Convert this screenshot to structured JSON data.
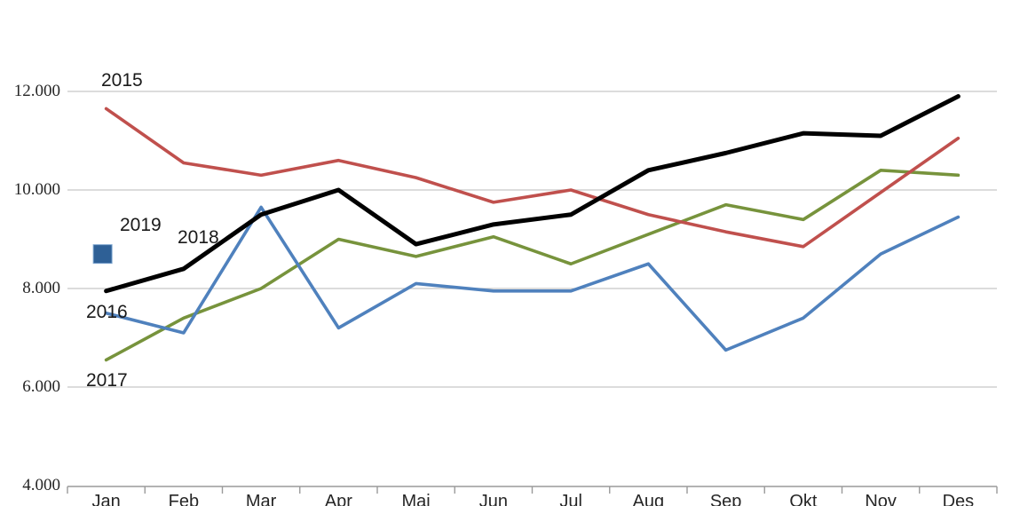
{
  "chart_data": {
    "type": "line",
    "title": "",
    "xlabel": "",
    "ylabel": "",
    "categories": [
      "Jan",
      "Feb",
      "Mar",
      "Apr",
      "Mai",
      "Jun",
      "Jul",
      "Aug",
      "Sep",
      "Okt",
      "Nov",
      "Des"
    ],
    "y_ticks": [
      "4.000",
      "6.000",
      "8.000",
      "10.000",
      "12.000"
    ],
    "ylim": [
      4000,
      12000
    ],
    "grid": true,
    "legend_position": "inline-labels",
    "colors": {
      "grid": "#c6c6c6",
      "axis": "#9a9a9a",
      "s2015": "#c0504d",
      "s2016": "#4f81bd",
      "s2017": "#77933c",
      "s2018": "#000000",
      "s2019_fill": "#2e6096",
      "s2019_border": "#7ea6d0"
    },
    "series": [
      {
        "name": "2015",
        "color": "#c0504d",
        "style": "line",
        "values": [
          11650,
          10550,
          10300,
          10600,
          10250,
          9750,
          10000,
          9500,
          9150,
          8850,
          9950,
          11050
        ]
      },
      {
        "name": "2016",
        "color": "#4f81bd",
        "style": "line",
        "values": [
          7500,
          7100,
          9650,
          7200,
          8100,
          7950,
          7950,
          8500,
          6750,
          7400,
          8700,
          9450
        ]
      },
      {
        "name": "2017",
        "color": "#77933c",
        "style": "line",
        "values": [
          6550,
          7400,
          8000,
          9000,
          8650,
          9050,
          8500,
          9100,
          9700,
          9400,
          10400,
          10300
        ]
      },
      {
        "name": "2018",
        "color": "#000000",
        "style": "line",
        "values": [
          7950,
          8400,
          9500,
          10000,
          8900,
          9300,
          9500,
          10400,
          10750,
          11150,
          11100,
          11900
        ]
      },
      {
        "name": "2019",
        "color": "#2e6096",
        "style": "square-marker",
        "values": [
          8700,
          null,
          null,
          null,
          null,
          null,
          null,
          null,
          null,
          null,
          null,
          null
        ]
      }
    ]
  }
}
